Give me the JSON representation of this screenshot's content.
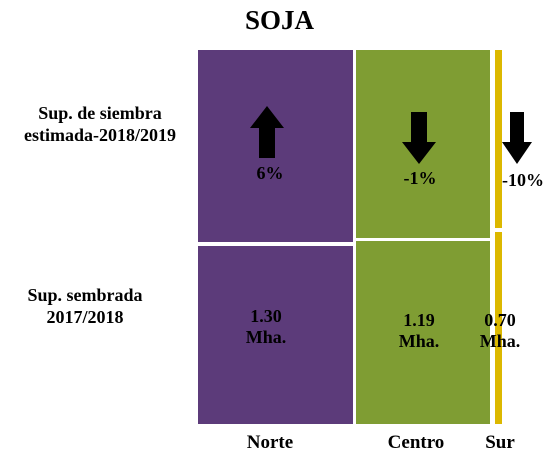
{
  "colors": {
    "norte": "#5c3b7a",
    "centro": "#7f9d33",
    "sur": "#dcb800",
    "divider": "#ffffff",
    "arrow": "#000000"
  },
  "chart_data": {
    "type": "table",
    "title": "SOJA",
    "row_labels": {
      "top": [
        "Sup. de siembra",
        "estimada-2018/2019"
      ],
      "bottom": [
        "Sup. sembrada",
        "2017/2018"
      ]
    },
    "regions": [
      "Norte",
      "Centro",
      "Sur"
    ],
    "change": [
      {
        "region": "Norte",
        "label": "6%",
        "value": 6,
        "direction": "up"
      },
      {
        "region": "Centro",
        "label": "-1%",
        "value": -1,
        "direction": "down"
      },
      {
        "region": "Sur",
        "label": "-10%",
        "value": -10,
        "direction": "down"
      }
    ],
    "sown_area": [
      {
        "region": "Norte",
        "value_label": "1.30",
        "unit": "Mha.",
        "value": 1.3
      },
      {
        "region": "Centro",
        "value_label": "1.19",
        "unit": "Mha.",
        "value": 1.19
      },
      {
        "region": "Sur",
        "value_label": "0.70",
        "unit": "Mha.",
        "value": 0.7
      }
    ]
  }
}
